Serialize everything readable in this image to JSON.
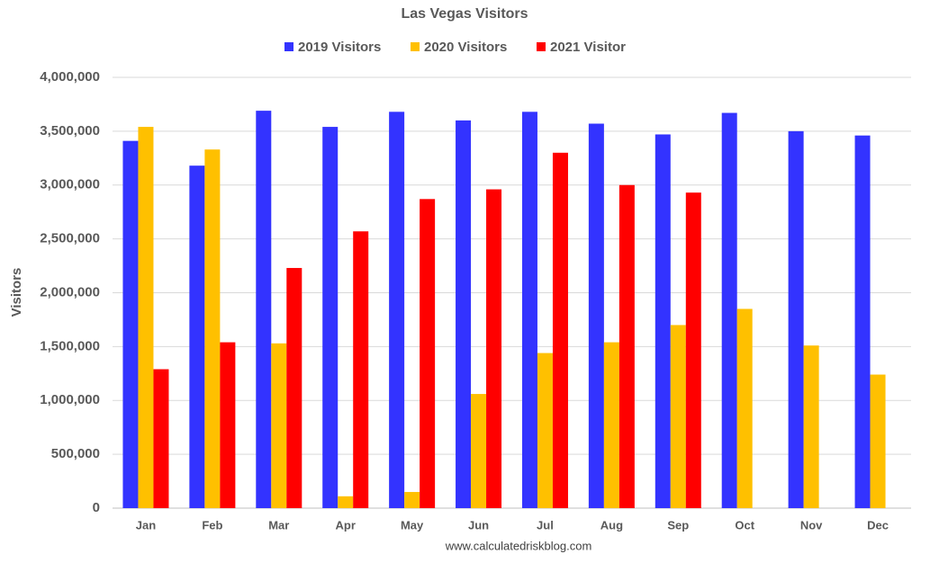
{
  "chart_data": {
    "type": "bar",
    "title": "Las Vegas Visitors",
    "y_label": "Visitors",
    "source": "www.calculatedriskblog.com",
    "categories": [
      "Jan",
      "Feb",
      "Mar",
      "Apr",
      "May",
      "Jun",
      "Jul",
      "Aug",
      "Sep",
      "Oct",
      "Nov",
      "Dec"
    ],
    "series": [
      {
        "name": "2019 Visitors",
        "color": "#3333ff",
        "values": [
          3410000,
          3180000,
          3690000,
          3540000,
          3680000,
          3600000,
          3680000,
          3570000,
          3470000,
          3670000,
          3500000,
          3460000
        ]
      },
      {
        "name": "2020 Visitors",
        "color": "#ffc000",
        "values": [
          3540000,
          3330000,
          1530000,
          110000,
          150000,
          1060000,
          1440000,
          1540000,
          1700000,
          1850000,
          1510000,
          1240000
        ]
      },
      {
        "name": "2021 Visitor",
        "color": "#ff0000",
        "values": [
          1290000,
          1540000,
          2230000,
          2570000,
          2870000,
          2960000,
          3300000,
          3000000,
          2930000,
          null,
          null,
          null
        ]
      }
    ],
    "ylim": [
      0,
      4000000
    ],
    "yticks": [
      0,
      {
        "value": 500000,
        "label": "500,000"
      },
      {
        "value": 1000000,
        "label": "1,000,000"
      },
      {
        "value": 1500000,
        "label": "1,500,000"
      },
      {
        "value": 2000000,
        "label": "2,000,000"
      },
      {
        "value": 2500000,
        "label": "2,500,000"
      },
      {
        "value": 3000000,
        "label": "3,000,000"
      },
      {
        "value": 3500000,
        "label": "3,500,000"
      },
      {
        "value": 4000000,
        "label": "4,000,000"
      }
    ],
    "grid": true,
    "legend": "top"
  }
}
